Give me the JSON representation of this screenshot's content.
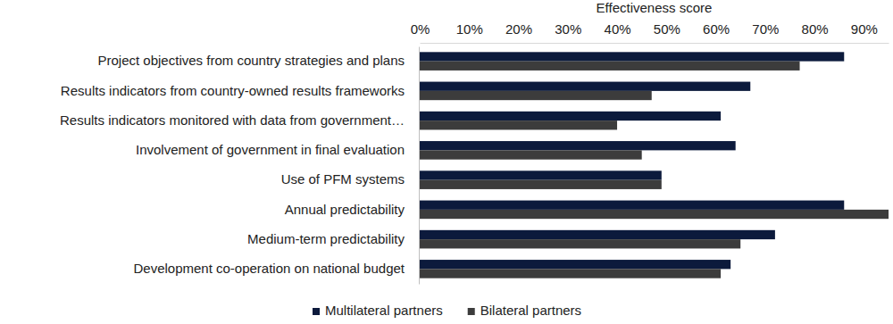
{
  "chart_data": {
    "type": "bar",
    "orientation": "horizontal",
    "x_label": "Effectiveness score",
    "categories": [
      "Project objectives from country strategies and plans",
      "Results indicators from country-owned results frameworks",
      "Results indicators monitored with data from government…",
      "Involvement of government in final evaluation",
      "Use of PFM systems",
      "Annual predictability",
      "Medium-term predictability",
      "Development co-operation on national budget"
    ],
    "series": [
      {
        "name": "Multilateral partners",
        "color": "#0c1a3c",
        "values": [
          86,
          67,
          61,
          64,
          49,
          86,
          72,
          63
        ]
      },
      {
        "name": "Bilateral partners",
        "color": "#3c3c3c",
        "values": [
          77,
          47,
          40,
          45,
          49,
          95,
          65,
          61
        ]
      }
    ],
    "xlim": [
      0,
      95
    ],
    "xticks": [
      {
        "value": 0,
        "label": "0%"
      },
      {
        "value": 10,
        "label": "10%"
      },
      {
        "value": 20,
        "label": "20%"
      },
      {
        "value": 30,
        "label": "30%"
      },
      {
        "value": 40,
        "label": "40%"
      },
      {
        "value": 50,
        "label": "50%"
      },
      {
        "value": 60,
        "label": "60%"
      },
      {
        "value": 70,
        "label": "70%"
      },
      {
        "value": 80,
        "label": "80%"
      },
      {
        "value": 90,
        "label": "90%"
      }
    ],
    "grid": false,
    "legend": "bottom"
  }
}
